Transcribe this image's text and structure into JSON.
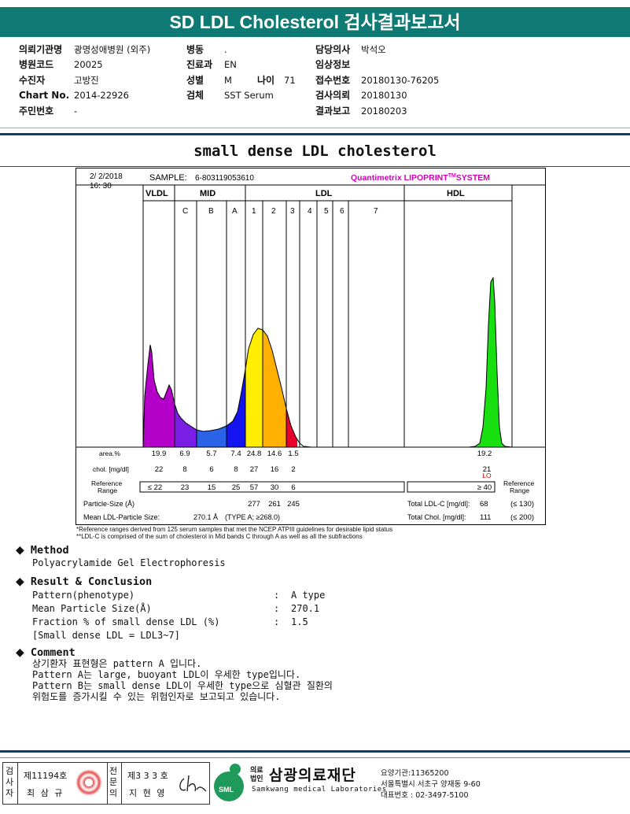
{
  "header": {
    "title": "SD LDL Cholesterol 검사결과보고서"
  },
  "info": {
    "col1": [
      {
        "label": "의뢰기관명",
        "value": "광명성애병원 (외주)"
      },
      {
        "label": "병원코드",
        "value": "20025"
      },
      {
        "label": "수진자",
        "value": "고방진"
      },
      {
        "label": "Chart No.",
        "value": "2014-22926"
      },
      {
        "label": "주민번호",
        "value": "-"
      }
    ],
    "col2": [
      {
        "label": "병동",
        "value": "."
      },
      {
        "label": "진료과",
        "value": "EN"
      },
      {
        "label": "성별",
        "value": "M"
      },
      {
        "label": "검체",
        "value": "SST Serum"
      }
    ],
    "age": {
      "label": "나이",
      "value": "71"
    },
    "col3": [
      {
        "label": "담당의사",
        "value": "박석오"
      },
      {
        "label": "임상정보",
        "value": ""
      },
      {
        "label": "접수번호",
        "value": "20180130-76205"
      },
      {
        "label": "검사의뢰",
        "value": "20180130"
      },
      {
        "label": "결과보고",
        "value": "20180203"
      }
    ]
  },
  "subtitle": "small dense LDL cholesterol",
  "lipoprint": {
    "date": "2/ 2/2018",
    "time": "16: 30",
    "sample_label": "SAMPLE:",
    "sample_id": "6-803119053610",
    "brand": "Quantimetrix LIPOPRINT",
    "brand_tm": "TM",
    "brand_suffix": "SYSTEM",
    "brand_color": "#d400b8",
    "groups": [
      "VLDL",
      "MID",
      "LDL",
      "HDL"
    ],
    "mid_bands": [
      "C",
      "B",
      "A"
    ],
    "ldl_bands": [
      "1",
      "2",
      "3",
      "4",
      "5",
      "6",
      "7"
    ],
    "row_area_label": "area.%",
    "row_chol_label": "chol. [mg/dl]",
    "area_values": [
      "19.9",
      "6.9",
      "5.7",
      "7.4",
      "24.8",
      "14.6",
      "1.5"
    ],
    "chol_values": [
      "22",
      "8",
      "6",
      "8",
      "27",
      "16",
      "2"
    ],
    "hdl_area": "19.2",
    "hdl_chol": "21",
    "hdl_flag": "LO",
    "ref_label_1": "Reference",
    "ref_label_2": "Range",
    "ref_values": [
      "≤ 22",
      "23",
      "15",
      "25",
      "57",
      "30",
      "6"
    ],
    "hdl_ref": "≥ 40",
    "particle_size_label": "Particle-Size (Å)",
    "particle_sizes": [
      "277",
      "261",
      "245"
    ],
    "mean_label": "Mean LDL-Particle Size:",
    "mean_value": "270.1 Å",
    "mean_type": "(TYPE A; ≥268.0)",
    "total_ldl_label": "Total LDL-C [mg/dl]:",
    "total_ldl_value": "68",
    "total_ldl_ref": "(≤ 130)",
    "total_chol_label": "Total Chol. [mg/dl]:",
    "total_chol_value": "111",
    "total_chol_ref": "(≤ 200)",
    "note1": "*Reference ranges derived from 125 serum samples that met the NCEP ATPIII guidelines for desirable lipid status",
    "note2": "**LDL-C is comprised of the sum of cholesterol in Mid bands C through A as well as all the subfractions"
  },
  "method": {
    "title": "Method",
    "text": "Polyacrylamide Gel Electrophoresis"
  },
  "result": {
    "title": "Result & Conclusion",
    "rows": [
      {
        "label": "Pattern(phenotype)",
        "value": "A type"
      },
      {
        "label": "Mean Particle Size(Å)",
        "value": "270.1"
      },
      {
        "label": "Fraction % of small dense LDL (%)",
        "value": "1.5"
      }
    ],
    "note": "[Small dense LDL = LDL3~7]"
  },
  "comment": {
    "title": "Comment",
    "lines": [
      "상기환자 표현형은 pattern A 입니다.",
      "Pattern A는 large, buoyant LDL이 우세한 type입니다.",
      "Pattern B는 small dense LDL이 우세한 type으로 심혈관 질환의",
      "위험도를 증가시킬 수 있는 위험인자로 보고되고 있습니다."
    ]
  },
  "footer": {
    "box1_side": "검사자",
    "box1_license": "제11194호",
    "box1_name": "최 삼 규",
    "box2_side": "전문의",
    "box2_license": "제3 3 3 호",
    "box2_name": "지 현 영",
    "logo_text": "SML",
    "org_prefix_1": "의료",
    "org_prefix_2": "법인",
    "org_name": "삼광의료재단",
    "org_english": "Samkwang medical Laboratories",
    "org_code": "요양기관:11365200",
    "org_address": "서울특별시 서초구 양재동 9-60",
    "org_phone": "대표번호 : 02-3497-5100",
    "brand_green": "#1f9a5a"
  }
}
